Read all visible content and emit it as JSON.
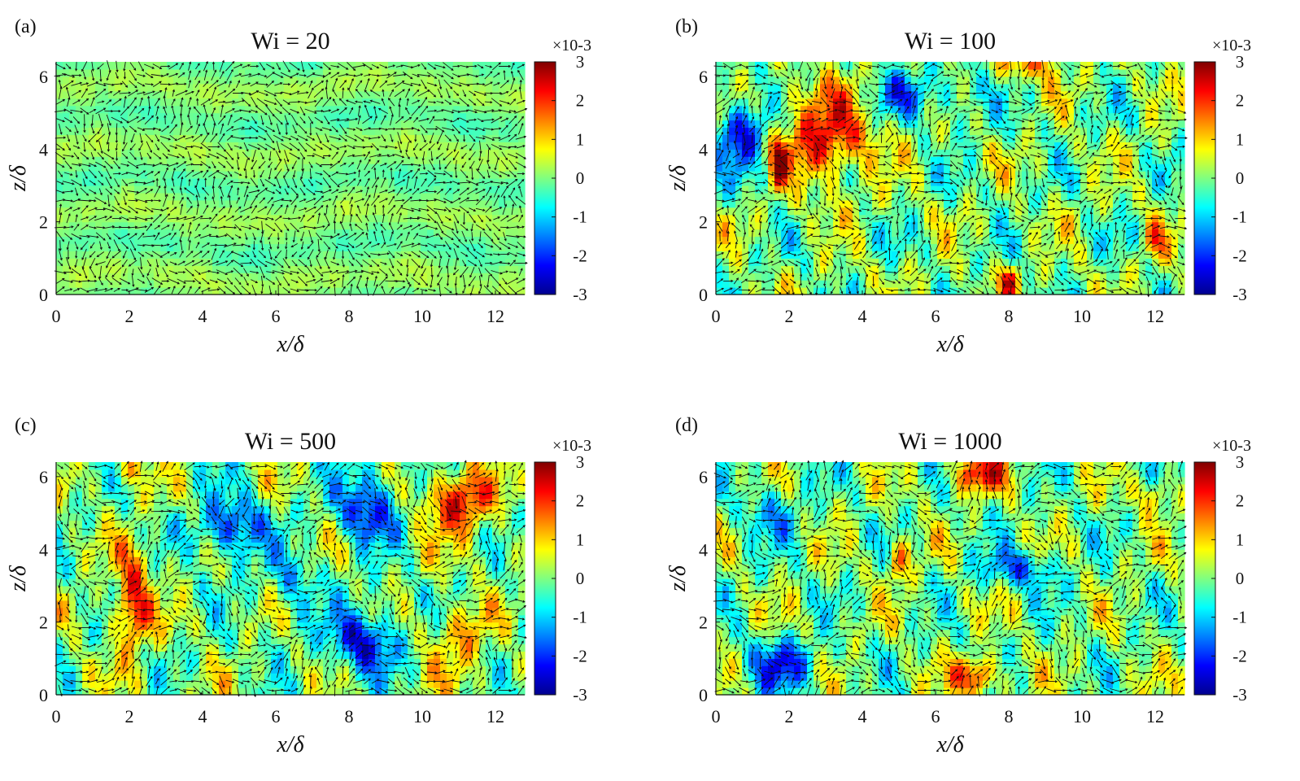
{
  "chart_data": [
    {
      "type": "heatmap",
      "panel_label": "(a)",
      "title": "Wi = 20",
      "xlabel": "x/δ",
      "ylabel": "z/δ",
      "xlim": [
        0,
        12.8
      ],
      "ylim": [
        0,
        6.4
      ],
      "x_ticks": [
        "0",
        "2",
        "4",
        "6",
        "8",
        "10",
        "12"
      ],
      "y_ticks": [
        "0",
        "2",
        "4",
        "6"
      ],
      "colorbar": {
        "range": [
          -3,
          3
        ],
        "ticks": [
          "3",
          "2",
          "1",
          "0",
          "-1",
          "-2",
          "-3"
        ],
        "exponent_label": "×10-3",
        "colormap": "jet"
      },
      "field_amplitude": 0.12,
      "field_seed": 3,
      "streak_strength": 1.0
    },
    {
      "type": "heatmap",
      "panel_label": "(b)",
      "title": "Wi = 100",
      "xlabel": "x/δ",
      "ylabel": "z/δ",
      "xlim": [
        0,
        12.8
      ],
      "ylim": [
        0,
        6.4
      ],
      "x_ticks": [
        "0",
        "2",
        "4",
        "6",
        "8",
        "10",
        "12"
      ],
      "y_ticks": [
        "0",
        "2",
        "4",
        "6"
      ],
      "colorbar": {
        "range": [
          -3,
          3
        ],
        "ticks": [
          "3",
          "2",
          "1",
          "0",
          "-1",
          "-2",
          "-3"
        ],
        "exponent_label": "×10-3",
        "colormap": "jet"
      },
      "features": [
        {
          "x": 0.7,
          "z": 4.4,
          "value": -2.2,
          "rx": 0.7,
          "rz": 1.0
        },
        {
          "x": 3.0,
          "z": 4.4,
          "value": 2.3,
          "rx": 1.2,
          "rz": 1.3
        },
        {
          "x": 1.7,
          "z": 3.6,
          "value": 2.6,
          "rx": 0.2,
          "rz": 0.7
        },
        {
          "x": 8.5,
          "z": 6.3,
          "value": 1.6,
          "rx": 0.8,
          "rz": 0.4
        },
        {
          "x": 5.0,
          "z": 5.6,
          "value": -1.4,
          "rx": 0.8,
          "rz": 0.6
        },
        {
          "x": 8.0,
          "z": 0.4,
          "value": 1.8,
          "rx": 0.3,
          "rz": 0.4
        },
        {
          "x": 12.0,
          "z": 1.5,
          "value": 1.6,
          "rx": 0.3,
          "rz": 0.5
        },
        {
          "x": 6.5,
          "z": 5.5,
          "value": -0.9,
          "rx": 1.0,
          "rz": 0.6
        }
      ],
      "field_amplitude": 0.8,
      "field_seed": 7,
      "streak_strength": 0.4
    },
    {
      "type": "heatmap",
      "panel_label": "(c)",
      "title": "Wi = 500",
      "xlabel": "x/δ",
      "ylabel": "z/δ",
      "xlim": [
        0,
        12.8
      ],
      "ylim": [
        0,
        6.4
      ],
      "x_ticks": [
        "0",
        "2",
        "4",
        "6",
        "8",
        "10",
        "12"
      ],
      "y_ticks": [
        "0",
        "2",
        "4",
        "6"
      ],
      "colorbar": {
        "range": [
          -3,
          3
        ],
        "ticks": [
          "3",
          "2",
          "1",
          "0",
          "-1",
          "-2",
          "-3"
        ],
        "exponent_label": "×10-3",
        "colormap": "jet"
      },
      "features": [
        {
          "x": 2.1,
          "z": 2.6,
          "value": 2.3,
          "rx": 0.5,
          "rz": 1.4
        },
        {
          "x": 4.8,
          "z": 4.6,
          "value": -2.0,
          "rx": 0.9,
          "rz": 0.9
        },
        {
          "x": 8.5,
          "z": 5.2,
          "value": -2.2,
          "rx": 0.8,
          "rz": 1.0
        },
        {
          "x": 8.4,
          "z": 1.5,
          "value": -2.3,
          "rx": 0.9,
          "rz": 0.9
        },
        {
          "x": 11.0,
          "z": 5.3,
          "value": 2.3,
          "rx": 0.9,
          "rz": 0.9
        },
        {
          "x": 2.0,
          "z": 6.2,
          "value": 1.2,
          "rx": 0.5,
          "rz": 0.3
        },
        {
          "x": 11.0,
          "z": 1.5,
          "value": 1.2,
          "rx": 0.8,
          "rz": 1.0
        },
        {
          "x": 6.5,
          "z": 3.0,
          "value": -1.0,
          "rx": 0.6,
          "rz": 1.0
        }
      ],
      "field_amplitude": 0.8,
      "field_seed": 11,
      "streak_strength": 0.4
    },
    {
      "type": "heatmap",
      "panel_label": "(d)",
      "title": "Wi = 1000",
      "xlabel": "x/δ",
      "ylabel": "z/δ",
      "xlim": [
        0,
        12.8
      ],
      "ylim": [
        0,
        6.4
      ],
      "x_ticks": [
        "0",
        "2",
        "4",
        "6",
        "8",
        "10",
        "12"
      ],
      "y_ticks": [
        "0",
        "2",
        "4",
        "6"
      ],
      "colorbar": {
        "range": [
          -3,
          3
        ],
        "ticks": [
          "3",
          "2",
          "1",
          "0",
          "-1",
          "-2",
          "-3"
        ],
        "exponent_label": "×10-3",
        "colormap": "jet"
      },
      "features": [
        {
          "x": 7.2,
          "z": 6.1,
          "value": 2.1,
          "rx": 0.7,
          "rz": 0.5
        },
        {
          "x": 7.1,
          "z": 0.5,
          "value": 2.3,
          "rx": 0.6,
          "rz": 0.5
        },
        {
          "x": 1.8,
          "z": 0.8,
          "value": -2.0,
          "rx": 0.9,
          "rz": 0.7
        },
        {
          "x": 8.3,
          "z": 3.5,
          "value": -1.6,
          "rx": 1.0,
          "rz": 0.5
        },
        {
          "x": 5.0,
          "z": 3.7,
          "value": 1.6,
          "rx": 0.3,
          "rz": 0.6
        },
        {
          "x": 1.5,
          "z": 5.0,
          "value": -1.0,
          "rx": 0.8,
          "rz": 0.8
        },
        {
          "x": 12.0,
          "z": 5.5,
          "value": 1.0,
          "rx": 0.5,
          "rz": 0.5
        }
      ],
      "field_amplitude": 0.8,
      "field_seed": 17,
      "streak_strength": 0.3
    }
  ]
}
